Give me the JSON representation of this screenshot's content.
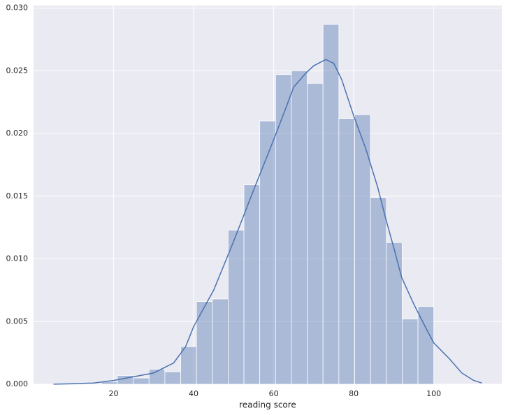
{
  "chart_data": {
    "type": "histogram",
    "xlabel": "reading score",
    "bins": [
      17,
      20.95,
      24.9,
      28.86,
      32.81,
      36.76,
      40.71,
      44.67,
      48.62,
      52.57,
      56.52,
      60.48,
      64.43,
      68.38,
      72.33,
      76.29,
      80.24,
      84.19,
      88.14,
      92.1,
      96.05,
      100
    ],
    "values": [
      0.0002,
      0.0007,
      0.0005,
      0.0012,
      0.001,
      0.003,
      0.0066,
      0.0068,
      0.0123,
      0.0159,
      0.021,
      0.0247,
      0.025,
      0.024,
      0.0287,
      0.0212,
      0.0215,
      0.0149,
      0.0113,
      0.0052,
      0.0062
    ],
    "color": "#4c72b0",
    "kde": {
      "color": "#4c72b0",
      "x": [
        5,
        10,
        15,
        20,
        25,
        30,
        35,
        38,
        40,
        45,
        50,
        55,
        60,
        63,
        65,
        68,
        70,
        73,
        75,
        77,
        80,
        83,
        86,
        88,
        90,
        92,
        95,
        98,
        100,
        104,
        107,
        110,
        112
      ],
      "y": [
        1e-05,
        4e-05,
        0.0001,
        0.0003,
        0.0006,
        0.0009,
        0.0017,
        0.003,
        0.0046,
        0.0075,
        0.0114,
        0.0155,
        0.0195,
        0.022,
        0.0237,
        0.0248,
        0.0254,
        0.0259,
        0.0256,
        0.0243,
        0.0214,
        0.0188,
        0.0157,
        0.0132,
        0.0109,
        0.0085,
        0.0064,
        0.0045,
        0.0033,
        0.002,
        0.0009,
        0.0003,
        0.0001
      ]
    },
    "xlim": [
      0,
      117
    ],
    "ylim": [
      0,
      0.0302
    ],
    "xticks": [
      20,
      40,
      60,
      80,
      100
    ],
    "yticks": [
      {
        "value": 0,
        "label": "0.000"
      },
      {
        "value": 0.005,
        "label": "0.005"
      },
      {
        "value": 0.01,
        "label": "0.010"
      },
      {
        "value": 0.015,
        "label": "0.015"
      },
      {
        "value": 0.02,
        "label": "0.020"
      },
      {
        "value": 0.025,
        "label": "0.025"
      },
      {
        "value": 0.03,
        "label": "0.030"
      }
    ],
    "grid": true
  }
}
